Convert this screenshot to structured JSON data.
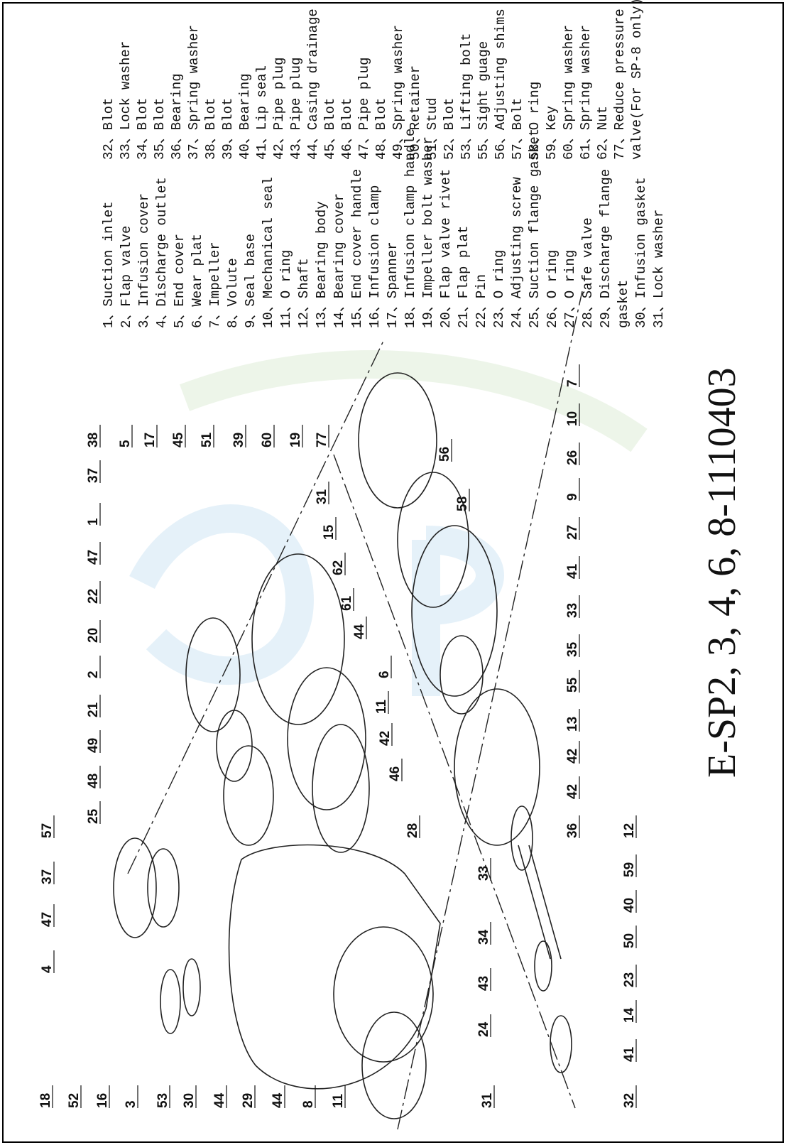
{
  "title": "E-SP2, 3, 4, 6, 8-1110403",
  "parts_list": {
    "column_1": [
      "1、Suction inlet",
      "2、Flap valve",
      "3、Infusion cover",
      "4、Discharge outlet",
      "5、End cover",
      "6、Wear plat",
      "7、Impeller",
      "8、Volute",
      "9、Seal base",
      "10、Mechanical seal",
      "11、O ring",
      "12、Shaft",
      "13、Bearing body",
      "14、Bearing cover",
      "15、End cover handle",
      "16、Infusion clamp",
      "17、Spanner",
      "18、Infusion clamp handle",
      "19、Impeller bolt washer",
      "20、Flap valve rivet",
      "21、Flap plat",
      "22、Pin",
      "23、O ring",
      "24、Adjusting screw",
      "25、Suction flange gasket",
      "26、O ring",
      "27、O ring",
      "28、Safe valve",
      "29、Discharge flange",
      "gasket",
      "30、Infusion gasket",
      "31、Lock washer"
    ],
    "column_2": [
      "32、Blot",
      "33、Lock washer",
      "34、Blot",
      "35、Blot",
      "36、Bearing",
      "37、Spring washer",
      "38、Blot",
      "39、Blot",
      "40、Bearing",
      "41、Lip seal",
      "42、Pipe plug",
      "43、Pipe plug",
      "44、Casing drainage",
      "45、Blot",
      "46、Blot",
      "47、Pipe plug",
      "48、Blot",
      "49、Spring washer",
      "50、Retainer",
      "51、Stud",
      "52、Blot",
      "53、Lifting bolt",
      "55、Sight guage",
      "56、Adjusting shims",
      "57、Bolt",
      "58、O ring",
      "59、Key",
      "60、Spring washer",
      "61、Spring washer",
      "62、Nut",
      "77、Reduce pressure",
      "valve(For SP-8 only)"
    ]
  },
  "callouts": [
    "18",
    "52",
    "16",
    "3",
    "53",
    "30",
    "44",
    "29",
    "44",
    "8",
    "11",
    "31",
    "24",
    "43",
    "34",
    "33",
    "28",
    "46",
    "42",
    "57",
    "37",
    "47",
    "4",
    "25",
    "48",
    "49",
    "21",
    "2",
    "20",
    "22",
    "47",
    "1",
    "37",
    "38",
    "5",
    "17",
    "45",
    "51",
    "39",
    "60",
    "19",
    "77",
    "31",
    "15",
    "62",
    "61",
    "44",
    "6",
    "11",
    "56",
    "58",
    "32",
    "41",
    "14",
    "23",
    "50",
    "40",
    "59",
    "12",
    "36",
    "42",
    "42",
    "13",
    "55",
    "35",
    "33",
    "41",
    "27",
    "9",
    "26",
    "10",
    "7"
  ]
}
